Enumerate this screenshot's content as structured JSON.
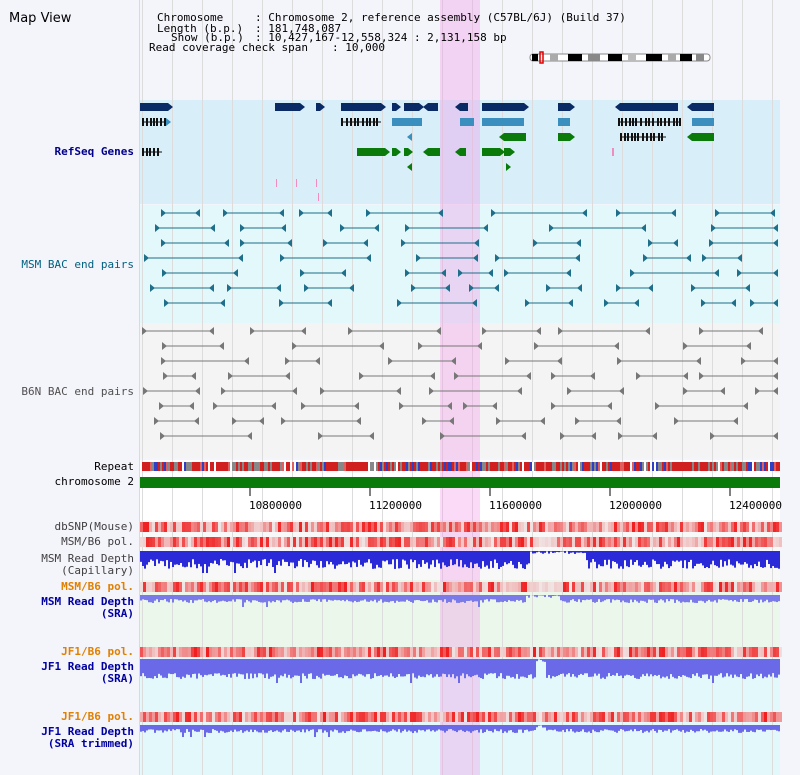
{
  "title": "Map View",
  "header": {
    "chromosome_key": "Chromosome",
    "chromosome_val": ": Chromosome 2, reference assembly (C57BL/6J) (Build 37)",
    "length_key": "Length (b.p.)",
    "length_val": ": 181,748,087",
    "show_key": "Show (b.p.)",
    "show_val": ": 10,427,167-12,558,324 : 2,131,158 bp",
    "coverage_key": "Read coverage check span",
    "coverage_val": ": 10,000"
  },
  "tracks": {
    "refseq": "RefSeq Genes",
    "msm_bac": "MSM BAC end pairs",
    "b6n_bac": "B6N BAC end pairs",
    "repeat": "Repeat",
    "chromosome": "chromosome 2",
    "dbsnp": "dbSNP(Mouse)",
    "msm_b6_pol_1": "MSM/B6 pol.",
    "msm_depth_cap_1": "MSM Read Depth",
    "msm_depth_cap_2": "(Capillary)",
    "msm_b6_pol_2": "MSM/B6 pol.",
    "msm_depth_sra_1": "MSM Read Depth",
    "msm_depth_sra_2": "(SRA)",
    "jf1_b6_pol_1": "JF1/B6 pol.",
    "jf1_depth_sra_1": "JF1 Read Depth",
    "jf1_depth_sra_2": "(SRA)",
    "jf1_b6_pol_2": "JF1/B6 pol.",
    "jf1_depth_trim_1": "JF1 Read Depth",
    "jf1_depth_trim_2": "(SRA trimmed)"
  },
  "axis": {
    "ticks": [
      "10800000",
      "11200000",
      "11600000",
      "12000000",
      "12400000"
    ]
  },
  "colors": {
    "refseq_label": "#00008b",
    "msm_label": "#006080",
    "b6n_label": "#505050",
    "pol_label_orange": "#e08000",
    "depth_label_blue": "#0000a0",
    "highlight": "#f3c0ee",
    "chromosome_bar": "#0a7a0a"
  }
}
